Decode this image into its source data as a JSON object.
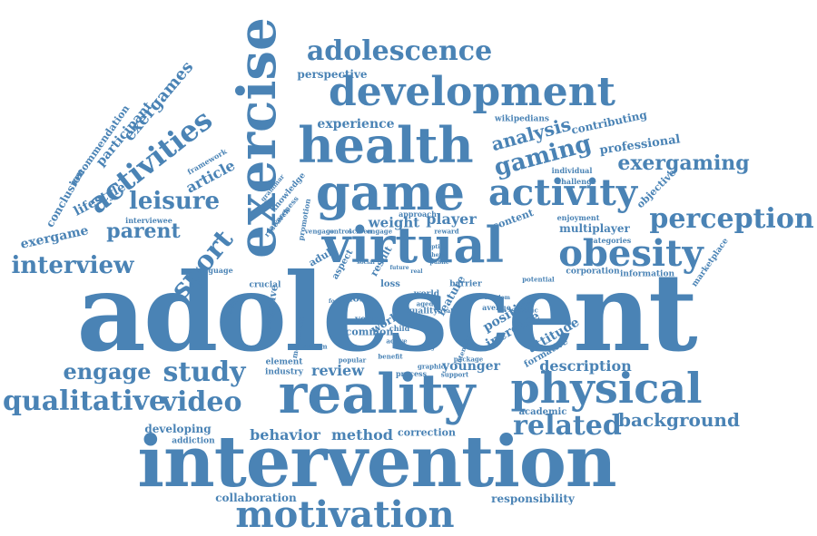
{
  "accent_color": "#4a83b5",
  "background_color": "#ffffff",
  "words": [
    "adolescent",
    "intervention",
    "reality",
    "virtual",
    "exercise",
    "game",
    "health",
    "development",
    "physical",
    "activity",
    "obesity",
    "motivation",
    "perception",
    "adolescence",
    "sport",
    "activities",
    "qualitative",
    "video",
    "study",
    "related",
    "leisure",
    "gaming",
    "interview",
    "engage",
    "exergaming",
    "background",
    "parent",
    "exergames",
    "analysis",
    "description",
    "behavior",
    "method",
    "review",
    "experience",
    "player",
    "weight",
    "younger",
    "attitude",
    "positive",
    "increase",
    "professional",
    "contributing",
    "lifestyle",
    "article",
    "participant",
    "recommendation",
    "conclusion",
    "exergame",
    "perspective",
    "multiplayer",
    "wikipedians",
    "collaboration",
    "responsibility",
    "developing",
    "addiction",
    "correction",
    "element",
    "industry",
    "framework",
    "objective",
    "marketplace",
    "information",
    "corporation",
    "categories",
    "enjoyment",
    "content",
    "formative",
    "academic",
    "work",
    "common",
    "year",
    "quality",
    "feature",
    "barrier",
    "loss",
    "most",
    "world",
    "approach",
    "challenge",
    "individual",
    "negative",
    "crucial",
    "adult",
    "aspect",
    "result",
    "knowledge",
    "grammar",
    "awareness",
    "research",
    "promotion",
    "interviewee",
    "language",
    "english",
    "movement",
    "system",
    "process",
    "support",
    "specific",
    "potential",
    "avenue",
    "child",
    "aged",
    "variety",
    "popular",
    "benefit",
    "graphic",
    "intensity",
    "package",
    "reward",
    "control",
    "screen",
    "engage2",
    "vengage",
    "future",
    "option",
    "theme",
    "public",
    "social",
    "real",
    "real2",
    "freedom",
    "focus",
    "active"
  ]
}
